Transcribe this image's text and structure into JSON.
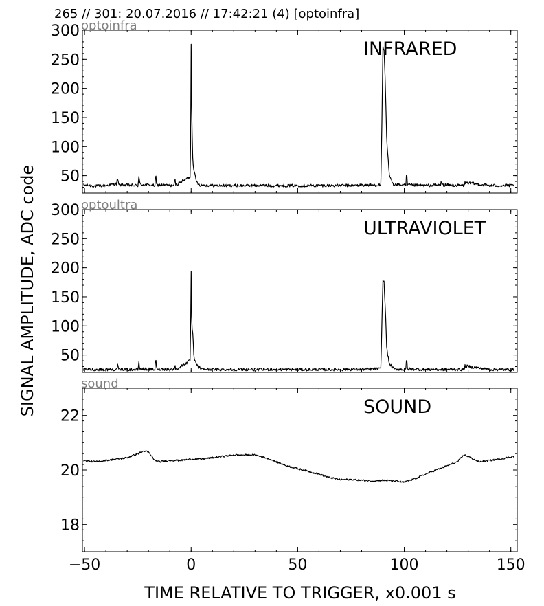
{
  "header": "265 // 301:   20.07.2016 // 17:42:21 (4)  [optoinfra]",
  "xlabel": "TIME RELATIVE TO TRIGGER,   x0.001 s",
  "ylabel": "SIGNAL AMPLITUDE,  ADC code",
  "x_tick_labels": [
    "−50",
    "0",
    "50",
    "100",
    "150"
  ],
  "chart_data": [
    {
      "type": "line",
      "panel_tag": "optoinfra",
      "title": "INFRARED",
      "xlim": [
        -51,
        153
      ],
      "ylim": [
        20,
        300
      ],
      "yticks": [
        50,
        100,
        150,
        200,
        250,
        300
      ],
      "ytick_labels": [
        "50",
        "100",
        "150",
        "200",
        "250",
        "300"
      ],
      "baseline": 33,
      "x": [
        -51,
        -45,
        -40,
        -35,
        -34.5,
        -34,
        -25,
        -24.5,
        -24,
        -17,
        -16.6,
        -16.2,
        -8,
        -7.6,
        -7.2,
        -0.5,
        -0.2,
        0,
        0.3,
        0.8,
        1.5,
        2.5,
        4,
        10,
        30,
        50,
        70,
        89,
        89.6,
        90,
        90.5,
        91,
        91.8,
        93,
        95,
        100.8,
        101.1,
        101.5,
        110,
        117,
        117.4,
        117.8,
        128,
        128.5,
        140,
        151
      ],
      "y": [
        34,
        32,
        33,
        36,
        45,
        34,
        33,
        48,
        35,
        33,
        52,
        34,
        33,
        44,
        34,
        48,
        120,
        275,
        150,
        75,
        55,
        40,
        34,
        33,
        33,
        33,
        33,
        34,
        160,
        270,
        265,
        220,
        110,
        50,
        35,
        33,
        58,
        34,
        33,
        34,
        40,
        34,
        33,
        38,
        33,
        33
      ]
    },
    {
      "type": "line",
      "panel_tag": "optoultra",
      "title": "ULTRAVIOLET",
      "xlim": [
        -51,
        153
      ],
      "ylim": [
        20,
        300
      ],
      "yticks": [
        50,
        100,
        150,
        200,
        250,
        300
      ],
      "ytick_labels": [
        "50",
        "100",
        "150",
        "200",
        "250",
        "300"
      ],
      "baseline": 25,
      "x": [
        -51,
        -35,
        -34.5,
        -34,
        -25,
        -24.5,
        -24,
        -17,
        -16.6,
        -16.2,
        -8,
        -7.6,
        -7.2,
        -0.5,
        -0.2,
        0,
        0.3,
        0.8,
        1.3,
        2,
        3,
        5,
        10,
        40,
        70,
        89,
        89.6,
        90,
        90.5,
        91,
        91.8,
        93,
        95,
        100.8,
        101.1,
        101.5,
        110,
        128,
        128.5,
        140,
        151
      ],
      "y": [
        25,
        25,
        32,
        25,
        25,
        36,
        26,
        25,
        45,
        26,
        25,
        33,
        25,
        40,
        110,
        192,
        100,
        85,
        45,
        38,
        30,
        26,
        25,
        25,
        25,
        26,
        120,
        178,
        175,
        140,
        60,
        35,
        26,
        25,
        46,
        26,
        25,
        25,
        31,
        25,
        25
      ]
    },
    {
      "type": "line",
      "panel_tag": "sound",
      "title": "SOUND",
      "xlim": [
        -51,
        153
      ],
      "ylim": [
        17,
        23
      ],
      "yticks": [
        18,
        20,
        22
      ],
      "ytick_labels": [
        "18",
        "20",
        "22"
      ],
      "baseline": null,
      "x": [
        -51,
        -45,
        -40,
        -35,
        -30,
        -25,
        -22,
        -20,
        -17,
        -15,
        -10,
        -5,
        0,
        5,
        10,
        15,
        20,
        25,
        30,
        35,
        40,
        45,
        50,
        55,
        60,
        65,
        70,
        75,
        80,
        85,
        90,
        95,
        100,
        105,
        110,
        115,
        120,
        125,
        128,
        130,
        135,
        140,
        145,
        151
      ],
      "y": [
        20.35,
        20.3,
        20.35,
        20.4,
        20.45,
        20.6,
        20.7,
        20.65,
        20.35,
        20.3,
        20.35,
        20.35,
        20.4,
        20.4,
        20.45,
        20.5,
        20.55,
        20.55,
        20.55,
        20.45,
        20.3,
        20.15,
        20.05,
        19.95,
        19.85,
        19.72,
        19.65,
        19.65,
        19.62,
        19.6,
        19.62,
        19.6,
        19.55,
        19.68,
        19.85,
        20.0,
        20.15,
        20.3,
        20.55,
        20.5,
        20.3,
        20.35,
        20.4,
        20.5
      ]
    }
  ]
}
